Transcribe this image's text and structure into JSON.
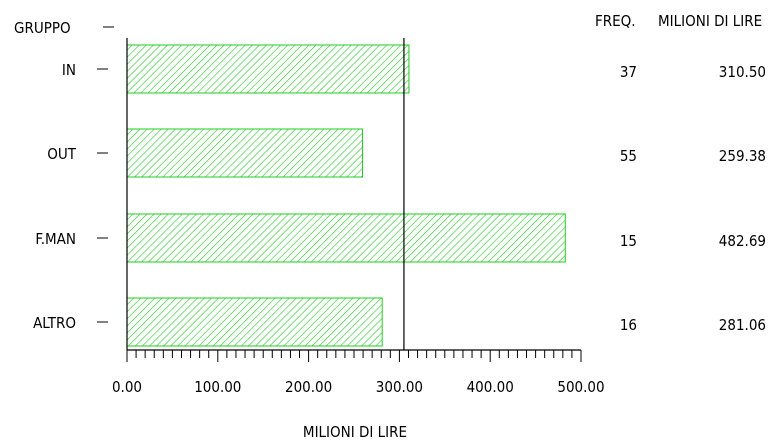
{
  "chart_data": {
    "type": "bar",
    "orientation": "horizontal",
    "category_axis_title": "GRUPPO",
    "categories": [
      "IN",
      "OUT",
      "F.MAN",
      "ALTRO"
    ],
    "values": [
      310.5,
      259.38,
      482.69,
      281.06
    ],
    "xlabel": "MILIONI DI LIRE",
    "xlim": [
      0,
      500
    ],
    "xticks": [
      0,
      100,
      200,
      300,
      400,
      500
    ],
    "xtick_labels": [
      "0.00",
      "100.00",
      "200.00",
      "300.00",
      "400.00",
      "500.00"
    ],
    "reference_line": 305,
    "bar_fill": "hatched",
    "bar_color": "#22cc22",
    "table": {
      "freq_header": "FREQ.",
      "value_header": "MILIONI DI LIRE",
      "freq": [
        "37",
        "55",
        "15",
        "16"
      ],
      "value_labels": [
        "310.50",
        "259.38",
        "482.69",
        "281.06"
      ]
    }
  }
}
